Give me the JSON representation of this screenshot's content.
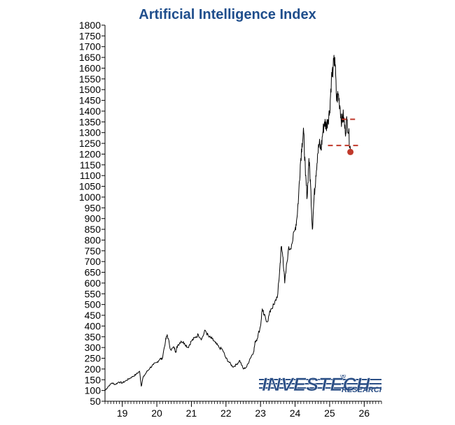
{
  "title": "Artificial Intelligence Index",
  "brand": {
    "name": "INVESTECH",
    "registered": "®",
    "sub": "RESEARCH",
    "color": "#2b4f86"
  },
  "colors": {
    "title": "#1f4e8c",
    "line": "#000000",
    "marker": "#c0392b",
    "dashed": "#c0392b"
  },
  "chart_data": {
    "type": "line",
    "title": "Artificial Intelligence Index",
    "xlabel": "",
    "ylabel": "",
    "grid": false,
    "legend": "none",
    "ylim": [
      50,
      1800
    ],
    "yticks": [
      50,
      100,
      150,
      200,
      250,
      300,
      350,
      400,
      450,
      500,
      550,
      600,
      650,
      700,
      750,
      800,
      850,
      900,
      950,
      1000,
      1050,
      1100,
      1150,
      1200,
      1250,
      1300,
      1350,
      1400,
      1450,
      1500,
      1550,
      1600,
      1650,
      1700,
      1750,
      1800
    ],
    "xlim": [
      2018.5,
      2026.5
    ],
    "xtick_labels": [
      "19",
      "20",
      "21",
      "22",
      "23",
      "24",
      "25",
      "26"
    ],
    "xtick_positions": [
      2019.0,
      2020.0,
      2021.0,
      2022.0,
      2023.0,
      2024.0,
      2025.0,
      2026.0
    ],
    "series": [
      {
        "x": [
          2018.5,
          2018.6,
          2018.7,
          2018.8,
          2018.9,
          2019.0,
          2019.1,
          2019.2,
          2019.3,
          2019.4,
          2019.5,
          2019.55,
          2019.6,
          2019.7,
          2019.8,
          2019.9,
          2020.0,
          2020.1,
          2020.15,
          2020.25,
          2020.3,
          2020.4,
          2020.5,
          2020.55,
          2020.6,
          2020.7,
          2020.8,
          2020.9,
          2021.0,
          2021.1,
          2021.2,
          2021.3,
          2021.4,
          2021.5,
          2021.6,
          2021.7,
          2021.8,
          2021.9,
          2022.0,
          2022.1,
          2022.2,
          2022.3,
          2022.4,
          2022.5,
          2022.6,
          2022.7,
          2022.8,
          2022.85,
          2022.9,
          2023.0,
          2023.05,
          2023.1,
          2023.2,
          2023.3,
          2023.4,
          2023.5,
          2023.55,
          2023.6,
          2023.65,
          2023.7,
          2023.8,
          2023.9,
          2024.0,
          2024.05,
          2024.1,
          2024.15,
          2024.2,
          2024.25,
          2024.3,
          2024.35,
          2024.4,
          2024.45,
          2024.5,
          2024.55,
          2024.6,
          2024.65,
          2024.7,
          2024.75,
          2024.8,
          2024.85,
          2024.9,
          2024.95,
          2025.0,
          2025.05,
          2025.1,
          2025.15,
          2025.2,
          2025.25,
          2025.3,
          2025.35,
          2025.4,
          2025.45,
          2025.5,
          2025.55,
          2025.6
        ],
        "y": [
          100,
          120,
          135,
          128,
          140,
          135,
          145,
          155,
          165,
          175,
          190,
          120,
          160,
          185,
          205,
          220,
          230,
          250,
          245,
          330,
          360,
          290,
          300,
          280,
          310,
          330,
          320,
          300,
          330,
          345,
          360,
          340,
          380,
          350,
          340,
          320,
          300,
          290,
          250,
          230,
          210,
          220,
          240,
          200,
          210,
          250,
          280,
          330,
          340,
          400,
          480,
          450,
          420,
          480,
          500,
          550,
          650,
          770,
          720,
          600,
          750,
          780,
          850,
          900,
          1000,
          1150,
          1250,
          1300,
          1100,
          1000,
          1180,
          1050,
          850,
          1000,
          1100,
          1200,
          1250,
          1220,
          1300,
          1350,
          1330,
          1360,
          1400,
          1550,
          1600,
          1650,
          1450,
          1480,
          1420,
          1350,
          1380,
          1300,
          1360,
          1300,
          1220
        ]
      }
    ],
    "annotations": {
      "marker": {
        "x": 2025.6,
        "y": 1210
      },
      "dashed_levels": [
        {
          "y": 1362,
          "x_start": 2025.35,
          "x_end": 2025.75
        },
        {
          "y": 1240,
          "x_start": 2024.95,
          "x_end": 2025.9
        }
      ]
    }
  }
}
